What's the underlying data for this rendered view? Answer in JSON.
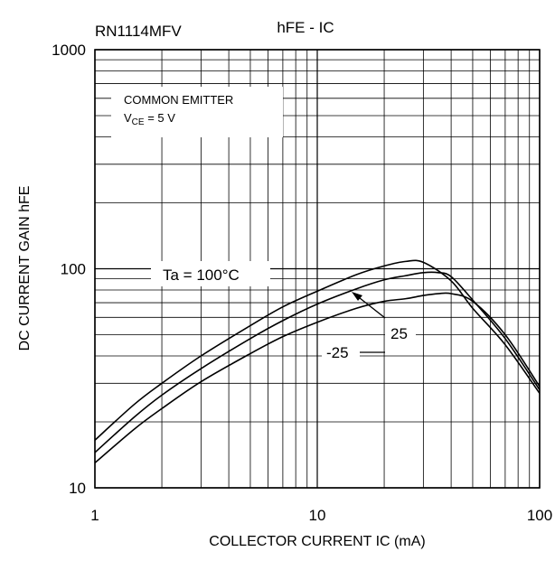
{
  "chart_data": {
    "type": "line",
    "part_number": "RN1114MFV",
    "title": "hFE - IC",
    "xlabel": "COLLECTOR CURRENT IC (mA)",
    "ylabel": "DC CURRENT GAIN hFE",
    "x_scale": "log",
    "y_scale": "log",
    "xlim": [
      1,
      100
    ],
    "ylim": [
      10,
      1000
    ],
    "x_ticks": [
      "1",
      "10",
      "100"
    ],
    "y_ticks": [
      "10",
      "100",
      "1000"
    ],
    "grid": true,
    "conditions": {
      "line1": "COMMON EMITTER",
      "line2_prefix": "V",
      "line2_sub": "CE",
      "line2_suffix": " = 5 V"
    },
    "series": [
      {
        "name": "Ta = 100°C",
        "x": [
          1,
          1.5,
          2,
          3,
          5,
          7,
          10,
          15,
          20,
          25,
          30,
          40,
          50,
          70,
          100
        ],
        "y": [
          16.5,
          24,
          30,
          40,
          55,
          67,
          79,
          94,
          103,
          108,
          107,
          88,
          66,
          45,
          27
        ]
      },
      {
        "name": "25",
        "x": [
          1,
          1.5,
          2,
          3,
          5,
          7,
          10,
          15,
          20,
          25,
          30,
          35,
          40,
          50,
          70,
          100
        ],
        "y": [
          14.5,
          21,
          26.5,
          35,
          48,
          58,
          69,
          81,
          89,
          93,
          96,
          96,
          92,
          72,
          48,
          28
        ]
      },
      {
        "name": "-25",
        "x": [
          1,
          1.5,
          2,
          3,
          5,
          7,
          10,
          15,
          20,
          25,
          30,
          35,
          40,
          50,
          70,
          100
        ],
        "y": [
          13,
          18.5,
          23,
          30.5,
          41,
          49,
          57,
          66,
          71,
          73,
          75.5,
          77,
          77,
          71,
          50,
          29
        ]
      }
    ],
    "annotations": [
      {
        "text": "Ta = 100°C"
      },
      {
        "text": "25"
      },
      {
        "text": "-25"
      }
    ]
  }
}
